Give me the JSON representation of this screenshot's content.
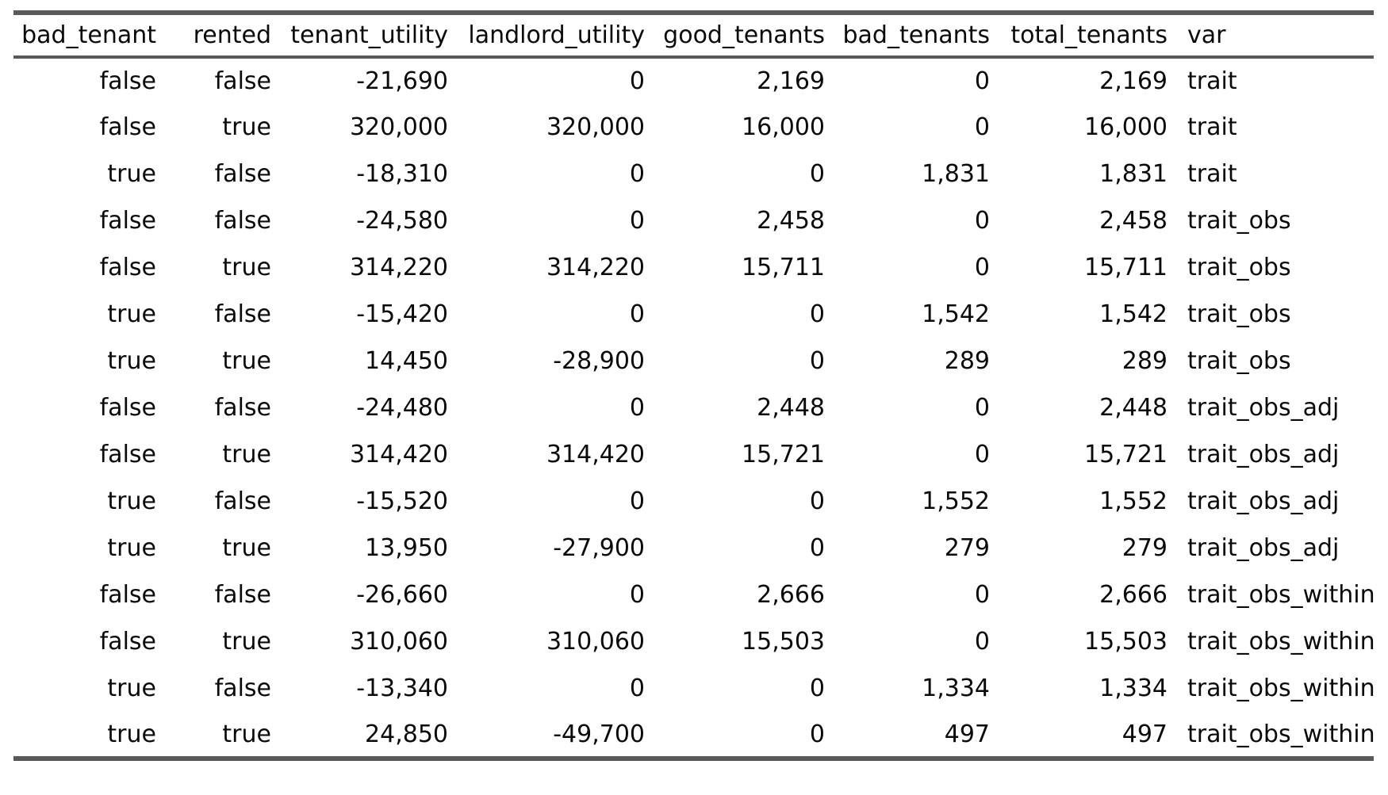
{
  "colors": {
    "rule": "#595959",
    "text": "#0a0a0a",
    "background": "#ffffff"
  },
  "chart_data": {
    "type": "table",
    "columns": [
      "bad_tenant",
      "rented",
      "tenant_utility",
      "landlord_utility",
      "good_tenants",
      "bad_tenants",
      "total_tenants",
      "var"
    ],
    "rows": [
      [
        "false",
        "false",
        "-21,690",
        "0",
        "2,169",
        "0",
        "2,169",
        "trait"
      ],
      [
        "false",
        "true",
        "320,000",
        "320,000",
        "16,000",
        "0",
        "16,000",
        "trait"
      ],
      [
        "true",
        "false",
        "-18,310",
        "0",
        "0",
        "1,831",
        "1,831",
        "trait"
      ],
      [
        "false",
        "false",
        "-24,580",
        "0",
        "2,458",
        "0",
        "2,458",
        "trait_obs"
      ],
      [
        "false",
        "true",
        "314,220",
        "314,220",
        "15,711",
        "0",
        "15,711",
        "trait_obs"
      ],
      [
        "true",
        "false",
        "-15,420",
        "0",
        "0",
        "1,542",
        "1,542",
        "trait_obs"
      ],
      [
        "true",
        "true",
        "14,450",
        "-28,900",
        "0",
        "289",
        "289",
        "trait_obs"
      ],
      [
        "false",
        "false",
        "-24,480",
        "0",
        "2,448",
        "0",
        "2,448",
        "trait_obs_adj"
      ],
      [
        "false",
        "true",
        "314,420",
        "314,420",
        "15,721",
        "0",
        "15,721",
        "trait_obs_adj"
      ],
      [
        "true",
        "false",
        "-15,520",
        "0",
        "0",
        "1,552",
        "1,552",
        "trait_obs_adj"
      ],
      [
        "true",
        "true",
        "13,950",
        "-27,900",
        "0",
        "279",
        "279",
        "trait_obs_adj"
      ],
      [
        "false",
        "false",
        "-26,660",
        "0",
        "2,666",
        "0",
        "2,666",
        "trait_obs_within"
      ],
      [
        "false",
        "true",
        "310,060",
        "310,060",
        "15,503",
        "0",
        "15,503",
        "trait_obs_within"
      ],
      [
        "true",
        "false",
        "-13,340",
        "0",
        "0",
        "1,334",
        "1,334",
        "trait_obs_within"
      ],
      [
        "true",
        "true",
        "24,850",
        "-49,700",
        "0",
        "497",
        "497",
        "trait_obs_within"
      ]
    ]
  }
}
